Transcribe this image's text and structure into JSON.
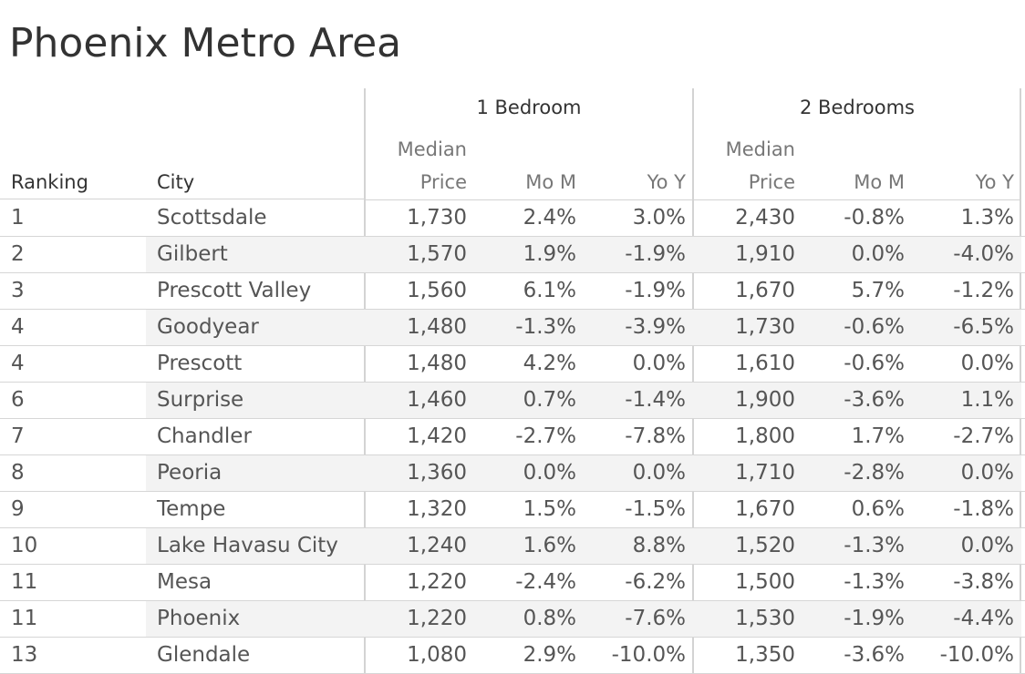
{
  "title": "Phoenix Metro Area",
  "headers": {
    "ranking": "Ranking",
    "city": "City",
    "groups": [
      "1 Bedroom",
      "2 Bedrooms"
    ],
    "median_line1": "Median",
    "median_line2": "Price",
    "mom": "Mo M",
    "yoy": "Yo Y"
  },
  "chart_data": {
    "type": "table",
    "title": "Phoenix Metro Area",
    "column_groups": [
      {
        "name": "1 Bedroom",
        "columns": [
          "Median Price",
          "Mo M",
          "Yo Y"
        ]
      },
      {
        "name": "2 Bedrooms",
        "columns": [
          "Median Price",
          "Mo M",
          "Yo Y"
        ]
      }
    ],
    "columns": [
      "Ranking",
      "City",
      "1 Bedroom Median Price",
      "1 Bedroom Mo M",
      "1 Bedroom Yo Y",
      "2 Bedrooms Median Price",
      "2 Bedrooms Mo M",
      "2 Bedrooms Yo Y"
    ],
    "rows": [
      [
        "1",
        "Scottsdale",
        "1,730",
        "2.4%",
        "3.0%",
        "2,430",
        "-0.8%",
        "1.3%"
      ],
      [
        "2",
        "Gilbert",
        "1,570",
        "1.9%",
        "-1.9%",
        "1,910",
        "0.0%",
        "-4.0%"
      ],
      [
        "3",
        "Prescott Valley",
        "1,560",
        "6.1%",
        "-1.9%",
        "1,670",
        "5.7%",
        "-1.2%"
      ],
      [
        "4",
        "Goodyear",
        "1,480",
        "-1.3%",
        "-3.9%",
        "1,730",
        "-0.6%",
        "-6.5%"
      ],
      [
        "4",
        "Prescott",
        "1,480",
        "4.2%",
        "0.0%",
        "1,610",
        "-0.6%",
        "0.0%"
      ],
      [
        "6",
        "Surprise",
        "1,460",
        "0.7%",
        "-1.4%",
        "1,900",
        "-3.6%",
        "1.1%"
      ],
      [
        "7",
        "Chandler",
        "1,420",
        "-2.7%",
        "-7.8%",
        "1,800",
        "1.7%",
        "-2.7%"
      ],
      [
        "8",
        "Peoria",
        "1,360",
        "0.0%",
        "0.0%",
        "1,710",
        "-2.8%",
        "0.0%"
      ],
      [
        "9",
        "Tempe",
        "1,320",
        "1.5%",
        "-1.5%",
        "1,670",
        "0.6%",
        "-1.8%"
      ],
      [
        "10",
        "Lake Havasu City",
        "1,240",
        "1.6%",
        "8.8%",
        "1,520",
        "-1.3%",
        "0.0%"
      ],
      [
        "11",
        "Mesa",
        "1,220",
        "-2.4%",
        "-6.2%",
        "1,500",
        "-1.3%",
        "-3.8%"
      ],
      [
        "11",
        "Phoenix",
        "1,220",
        "0.8%",
        "-7.6%",
        "1,530",
        "-1.9%",
        "-4.4%"
      ],
      [
        "13",
        "Glendale",
        "1,080",
        "2.9%",
        "-10.0%",
        "1,350",
        "-3.6%",
        "-10.0%"
      ]
    ]
  }
}
